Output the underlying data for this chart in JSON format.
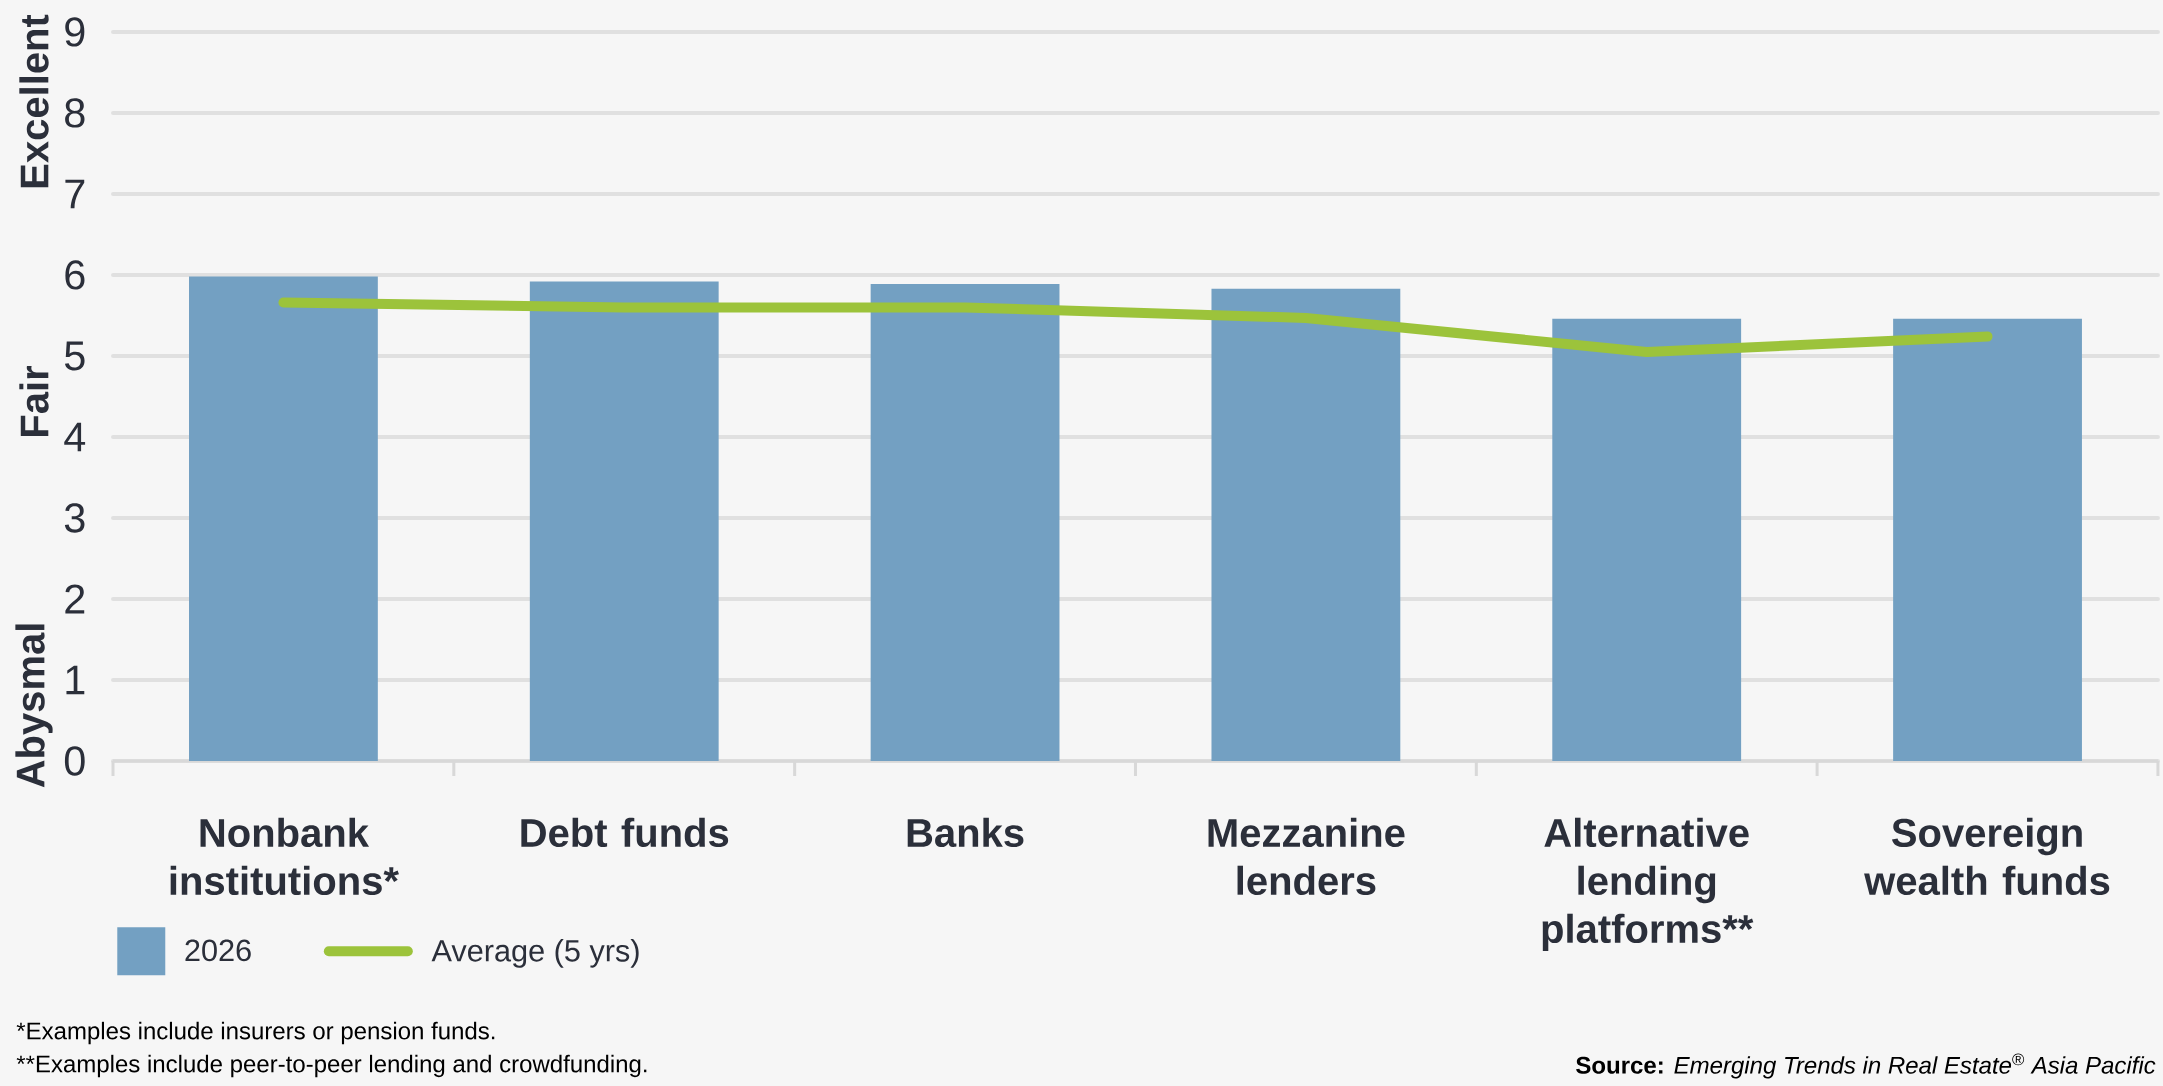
{
  "chart_data": {
    "type": "bar",
    "categories": [
      "Nonbank institutions*",
      "Debt funds",
      "Banks",
      "Mezzanine lenders",
      "Alternative lending platforms**",
      "Sovereign wealth funds"
    ],
    "series": [
      {
        "name": "2026",
        "type": "bar",
        "color": "#73a0c2",
        "values": [
          5.98,
          5.92,
          5.89,
          5.83,
          5.46,
          5.46
        ]
      },
      {
        "name": "Average (5 yrs)",
        "type": "line",
        "color": "#9cc33b",
        "values": [
          5.66,
          5.6,
          5.6,
          5.47,
          5.05,
          5.24
        ]
      }
    ],
    "ylim": [
      0,
      9
    ],
    "yticks": [
      0,
      1,
      2,
      3,
      4,
      5,
      6,
      7,
      8,
      9
    ],
    "grid": "y",
    "legend": "bottom left",
    "annotations": [
      "Abysmal",
      "Fair",
      "Excellent",
      "*Examples include insurers or pension funds.",
      "**Examples include peer-to-peer lending and crowdfunding.",
      "**Source:** *Emerging Trends in Real Estate*$^{®}$ *Asia Pacific*"
    ]
  }
}
